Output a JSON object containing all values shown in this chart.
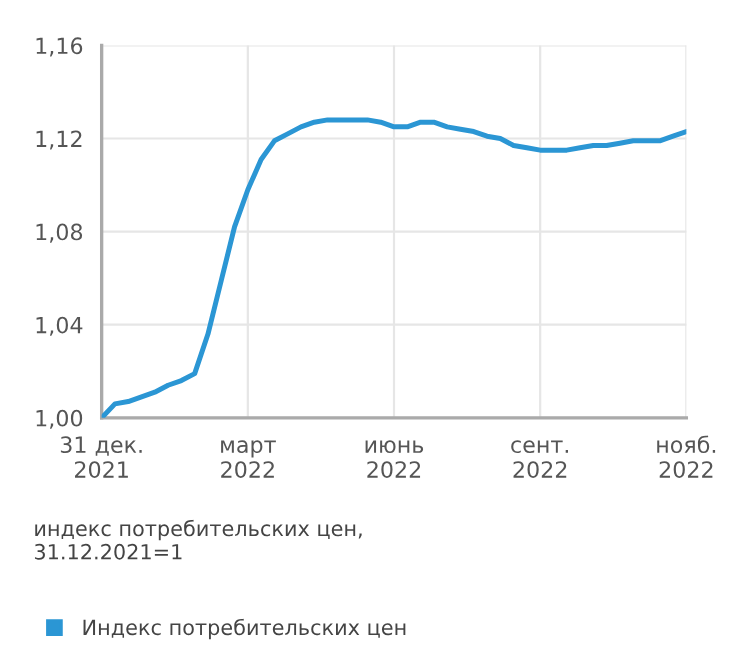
{
  "chart_data": {
    "type": "line",
    "categories": [
      "31 дек.\n2021",
      null,
      null,
      null,
      null,
      null,
      null,
      null,
      null,
      null,
      null,
      "март\n2022",
      null,
      null,
      null,
      null,
      null,
      null,
      null,
      null,
      null,
      null,
      "июнь\n2022",
      null,
      null,
      null,
      null,
      null,
      null,
      null,
      null,
      null,
      null,
      "сент.\n2022",
      null,
      null,
      null,
      null,
      null,
      null,
      null,
      null,
      null,
      null,
      "нояб.\n2022"
    ],
    "series": [
      {
        "name": "Индекс потребительских цен",
        "color": "#2b96d4",
        "values": [
          1.0,
          1.006,
          1.007,
          1.009,
          1.011,
          1.014,
          1.016,
          1.019,
          1.036,
          1.059,
          1.082,
          1.098,
          1.111,
          1.119,
          1.122,
          1.125,
          1.127,
          1.128,
          1.128,
          1.128,
          1.128,
          1.127,
          1.125,
          1.125,
          1.127,
          1.127,
          1.125,
          1.124,
          1.123,
          1.121,
          1.12,
          1.117,
          1.116,
          1.115,
          1.115,
          1.115,
          1.116,
          1.117,
          1.117,
          1.118,
          1.119,
          1.119,
          1.119,
          1.121,
          1.123
        ]
      }
    ],
    "ylim": [
      1.0,
      1.16
    ],
    "yticks": [
      {
        "value": 1.0,
        "label": "1,00"
      },
      {
        "value": 1.04,
        "label": "1,04"
      },
      {
        "value": 1.08,
        "label": "1,08"
      },
      {
        "value": 1.12,
        "label": "1,12"
      },
      {
        "value": 1.16,
        "label": "1,16"
      }
    ],
    "grid": true,
    "legend": "bottom",
    "marker": "none",
    "line_style": "solid",
    "annotations": [
      "индекс потребительских цен,\n31.12.2021=1"
    ]
  }
}
